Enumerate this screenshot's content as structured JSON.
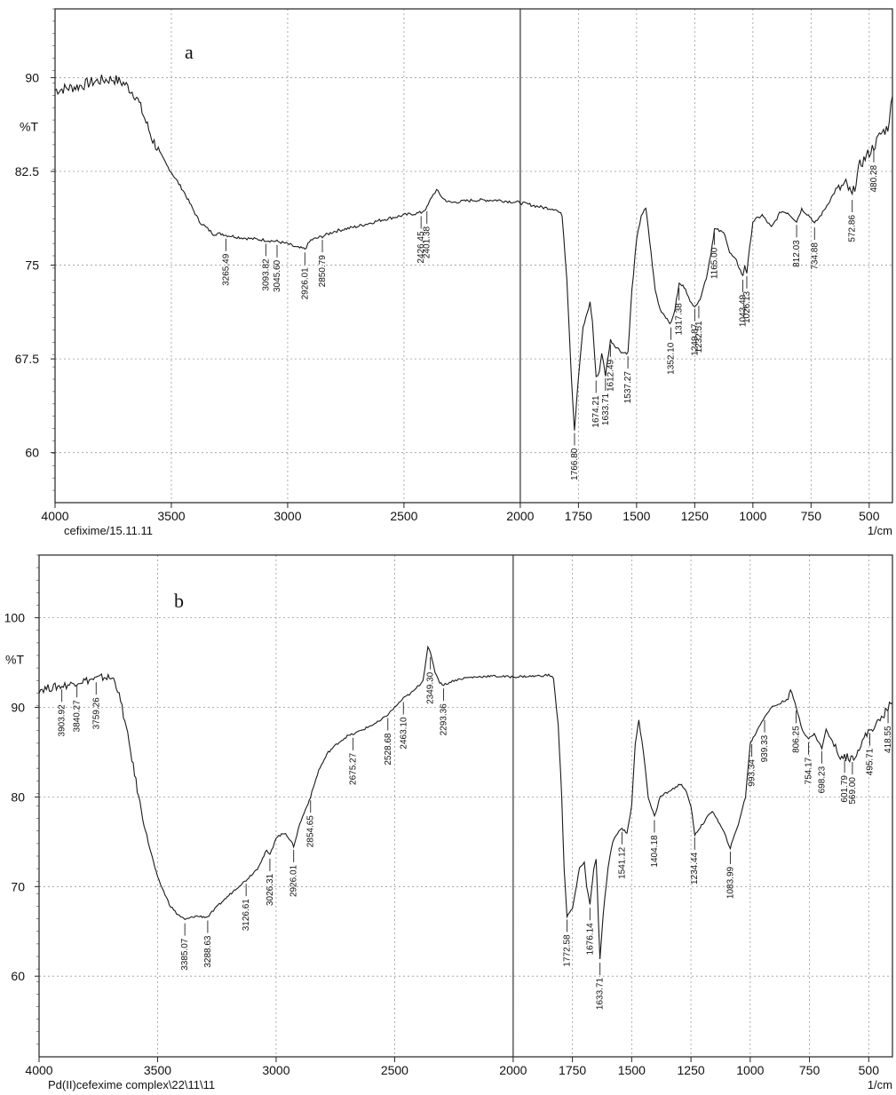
{
  "chart_data": [
    {
      "type": "line",
      "panel_label": "a",
      "ylabel": "%T",
      "xunit": "1/cm",
      "footer": "cefixime/15.11.11",
      "xlim": [
        4000,
        400
      ],
      "ylim": [
        56,
        95.5
      ],
      "x_ticks": [
        4000,
        3500,
        3000,
        2500,
        2000,
        1750,
        1500,
        1250,
        1000,
        750,
        500
      ],
      "y_ticks": [
        60,
        67.5,
        75,
        82.5,
        90
      ],
      "y_tick_labels": [
        "60",
        "67.5",
        "75",
        "82.5",
        "90"
      ],
      "vertical_divider": 2000,
      "series": [
        {
          "x": [
            4000,
            3900,
            3850,
            3800,
            3750,
            3700,
            3650,
            3620,
            3580,
            3520,
            3450,
            3380,
            3320,
            3280,
            3265,
            3200,
            3150,
            3094,
            3046,
            3000,
            2960,
            2926,
            2900,
            2851,
            2800,
            2700,
            2600,
            2500,
            2426,
            2401,
            2380,
            2360,
            2330,
            2300,
            2200,
            2100,
            2000,
            1900,
            1850,
            1820,
            1800,
            1790,
            1780,
            1767,
            1750,
            1730,
            1700,
            1690,
            1674,
            1660,
            1650,
            1634,
            1620,
            1612,
            1590,
            1560,
            1537,
            1520,
            1500,
            1480,
            1460,
            1450,
            1420,
            1400,
            1380,
            1352,
            1335,
            1317,
            1290,
            1270,
            1250,
            1233,
            1200,
            1180,
            1165,
            1150,
            1120,
            1100,
            1070,
            1043,
            1035,
            1026,
            1000,
            960,
            920,
            880,
            850,
            812,
            790,
            750,
            735,
            700,
            650,
            600,
            573,
            540,
            500,
            480,
            450,
            420,
            400
          ],
          "y": [
            89,
            89.3,
            89.6,
            89.8,
            89.9,
            89.5,
            88.5,
            87,
            85,
            83,
            81,
            78.5,
            77.5,
            77.5,
            77.4,
            77.2,
            77.1,
            77.0,
            76.9,
            76.7,
            76.4,
            76.3,
            77.0,
            77.3,
            77.7,
            78.1,
            78.6,
            79.0,
            79.2,
            79.6,
            80.5,
            81.0,
            80.3,
            80.0,
            80.2,
            80.2,
            80.0,
            79.6,
            79.5,
            79.0,
            74,
            70,
            66,
            61.8,
            66,
            70,
            72,
            70.5,
            66.0,
            66.5,
            68,
            66.2,
            68,
            69,
            68.5,
            68,
            68.0,
            73,
            77,
            79,
            79.5,
            78,
            73,
            71.5,
            71,
            70.3,
            71.5,
            73.5,
            73.2,
            72,
            71.8,
            72,
            74,
            76,
            77.9,
            77.8,
            77.5,
            76,
            75.3,
            74.1,
            75,
            74.4,
            78.5,
            79,
            78,
            79.3,
            79.2,
            78.5,
            79.5,
            78.8,
            78.3,
            79.2,
            80.8,
            81.5,
            80.5,
            83.0,
            84.0,
            84.5,
            85.5,
            86.0,
            88.5
          ]
        }
      ],
      "peaks": [
        {
          "x": 3265.49,
          "label": "3265.49"
        },
        {
          "x": 3093.82,
          "label": "3093.82"
        },
        {
          "x": 3045.6,
          "label": "3045.60"
        },
        {
          "x": 2926.01,
          "label": "2926.01"
        },
        {
          "x": 2850.79,
          "label": "2850.79"
        },
        {
          "x": 2426.45,
          "label": "2426.45"
        },
        {
          "x": 2401.38,
          "label": "2401.38"
        },
        {
          "x": 1766.8,
          "label": "1766.80"
        },
        {
          "x": 1674.21,
          "label": "1674.21"
        },
        {
          "x": 1633.71,
          "label": "1633.71"
        },
        {
          "x": 1612.49,
          "label": "1612.49"
        },
        {
          "x": 1537.27,
          "label": "1537.27"
        },
        {
          "x": 1352.1,
          "label": "1352.10"
        },
        {
          "x": 1317.38,
          "label": "1317.38"
        },
        {
          "x": 1249.87,
          "label": "1249.87"
        },
        {
          "x": 1232.51,
          "label": "1232.51"
        },
        {
          "x": 1165.0,
          "label": "1165.00"
        },
        {
          "x": 1043.49,
          "label": "1043.49"
        },
        {
          "x": 1026.13,
          "label": "1026.13"
        },
        {
          "x": 812.03,
          "label": "812.03"
        },
        {
          "x": 734.88,
          "label": "734.88"
        },
        {
          "x": 572.86,
          "label": "572.86"
        },
        {
          "x": 480.28,
          "label": "480.28"
        }
      ]
    },
    {
      "type": "line",
      "panel_label": "b",
      "ylabel": "%T",
      "xunit": "1/cm",
      "footer": "Pd(II)cefexime complex\\22\\11\\11",
      "xlim": [
        4000,
        400
      ],
      "ylim": [
        51,
        107
      ],
      "x_ticks": [
        4000,
        3500,
        3000,
        2500,
        2000,
        1750,
        1500,
        1250,
        1000,
        750,
        500
      ],
      "y_ticks": [
        60,
        70,
        80,
        90,
        100
      ],
      "y_tick_labels": [
        "60",
        "70",
        "80",
        "90",
        "100"
      ],
      "vertical_divider": 2000,
      "series": [
        {
          "x": [
            4000,
            3950,
            3904,
            3860,
            3840,
            3800,
            3759,
            3720,
            3680,
            3650,
            3620,
            3580,
            3540,
            3500,
            3450,
            3420,
            3385,
            3340,
            3289,
            3240,
            3200,
            3160,
            3127,
            3080,
            3040,
            3026,
            3000,
            2960,
            2926,
            2900,
            2870,
            2855,
            2820,
            2780,
            2740,
            2700,
            2675,
            2620,
            2560,
            2529,
            2500,
            2463,
            2420,
            2380,
            2360,
            2349,
            2330,
            2310,
            2293,
            2250,
            2200,
            2100,
            2000,
            1900,
            1850,
            1830,
            1810,
            1795,
            1785,
            1773,
            1750,
            1720,
            1700,
            1690,
            1676,
            1660,
            1650,
            1640,
            1634,
            1620,
            1600,
            1580,
            1560,
            1541,
            1520,
            1500,
            1485,
            1470,
            1450,
            1430,
            1404,
            1380,
            1350,
            1320,
            1290,
            1270,
            1250,
            1234,
            1200,
            1160,
            1140,
            1110,
            1084,
            1050,
            1020,
            1000,
            993,
            970,
            939,
            910,
            870,
            840,
            830,
            806,
            780,
            754,
            730,
            698,
            680,
            660,
            640,
            620,
            602,
            569,
            540,
            520,
            496,
            470,
            440,
            419,
            400
          ],
          "y": [
            92,
            92.2,
            92.4,
            92.6,
            92.9,
            93.0,
            93.2,
            93.4,
            93.1,
            90,
            86,
            80,
            75,
            71,
            68,
            67,
            66.3,
            66.7,
            66.6,
            68,
            69,
            70,
            70.7,
            72,
            74,
            73.5,
            75.5,
            76,
            74.5,
            77,
            79,
            80,
            83,
            85,
            86,
            86.8,
            87,
            87.7,
            88.5,
            89.2,
            90,
            91,
            91.8,
            93,
            96.8,
            96,
            94,
            92.8,
            92.5,
            93,
            93.3,
            93.5,
            93.4,
            93.5,
            93.6,
            93.3,
            88,
            80,
            72,
            66.7,
            67.5,
            72,
            72.8,
            70,
            68,
            72,
            73,
            66,
            61.8,
            67,
            72,
            75,
            76,
            76.5,
            76,
            79,
            86,
            88.5,
            85,
            80,
            77.8,
            80,
            80.5,
            81,
            81.5,
            80.5,
            79,
            75.8,
            77,
            78.5,
            77.5,
            76,
            74.3,
            77,
            80,
            86,
            86.3,
            87.5,
            89,
            90,
            90.5,
            91,
            92,
            90,
            87.5,
            86.5,
            87,
            85.5,
            87.5,
            86.5,
            85.5,
            84.5,
            84.5,
            84.3,
            85.5,
            86.5,
            87.5,
            88,
            89,
            90,
            90.5
          ]
        }
      ],
      "peaks": [
        {
          "x": 3903.92,
          "label": "3903.92"
        },
        {
          "x": 3840.27,
          "label": "3840.27"
        },
        {
          "x": 3759.26,
          "label": "3759.26"
        },
        {
          "x": 3385.07,
          "label": "3385.07"
        },
        {
          "x": 3288.63,
          "label": "3288.63"
        },
        {
          "x": 3126.61,
          "label": "3126.61"
        },
        {
          "x": 3026.31,
          "label": "3026.31"
        },
        {
          "x": 2926.01,
          "label": "2926.01"
        },
        {
          "x": 2854.65,
          "label": "2854.65"
        },
        {
          "x": 2675.27,
          "label": "2675.27"
        },
        {
          "x": 2528.68,
          "label": "2528.68"
        },
        {
          "x": 2463.1,
          "label": "2463.10"
        },
        {
          "x": 2349.3,
          "label": "2349.30"
        },
        {
          "x": 2293.36,
          "label": "2293.36"
        },
        {
          "x": 1772.58,
          "label": "1772.58"
        },
        {
          "x": 1676.14,
          "label": "1676.14"
        },
        {
          "x": 1633.71,
          "label": "1633.71"
        },
        {
          "x": 1541.12,
          "label": "1541.12"
        },
        {
          "x": 1404.18,
          "label": "1404.18"
        },
        {
          "x": 1234.44,
          "label": "1234.44"
        },
        {
          "x": 1083.99,
          "label": "1083.99"
        },
        {
          "x": 993.34,
          "label": "993.34"
        },
        {
          "x": 939.33,
          "label": "939.33"
        },
        {
          "x": 806.25,
          "label": "806.25"
        },
        {
          "x": 754.17,
          "label": "754.17"
        },
        {
          "x": 698.23,
          "label": "698.23"
        },
        {
          "x": 601.79,
          "label": "601.79"
        },
        {
          "x": 569.0,
          "label": "569.00"
        },
        {
          "x": 495.71,
          "label": "495.71"
        },
        {
          "x": 418.55,
          "label": "418.55"
        }
      ]
    }
  ]
}
